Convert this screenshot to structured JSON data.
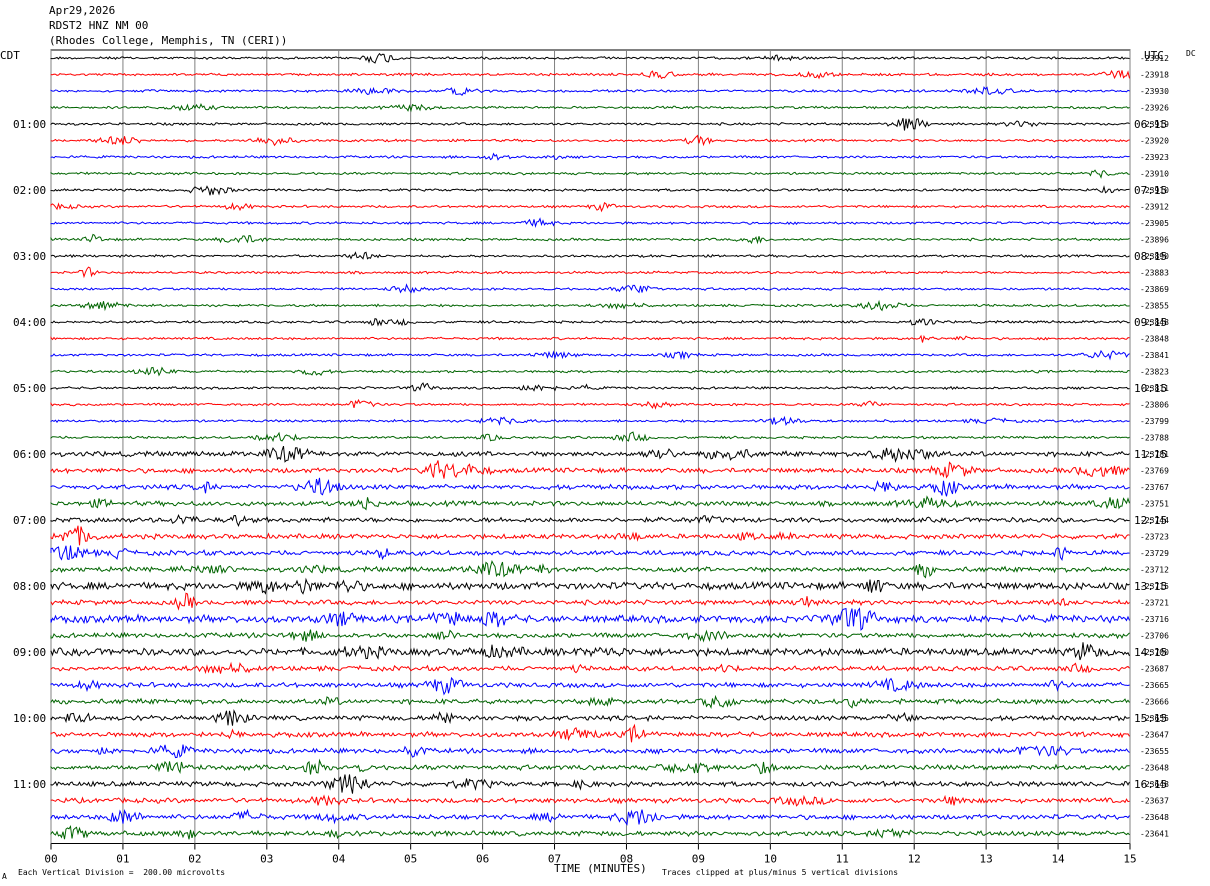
{
  "header": {
    "date": "Apr29,2026",
    "station": "RDST2 HNZ NM 00",
    "location": "(Rhodes College, Memphis, TN (CERI))"
  },
  "left_axis_title": "CDT",
  "right_axis_title": "UTC",
  "dc_label": "DC",
  "xaxis_title": "TIME (MINUTES)",
  "footer": {
    "division_note": "Each Vertical Division =  200.00 microvolts",
    "clip_note": "Traces clipped at plus/minus 5 vertical divisions",
    "corner_mark": "A"
  },
  "colors": {
    "black": "#000000",
    "red": "#ff0000",
    "blue": "#0000ff",
    "green": "#006400",
    "grid": "#808080"
  },
  "chart_data": {
    "type": "line",
    "title": "",
    "xlabel": "TIME (MINUTES)",
    "x_ticks": [
      "00",
      "01",
      "02",
      "03",
      "04",
      "05",
      "06",
      "07",
      "08",
      "09",
      "10",
      "11",
      "12",
      "13",
      "14",
      "15"
    ],
    "xlim": [
      0,
      15
    ],
    "grid": true,
    "trace_minutes": 15,
    "trace_colors": [
      "black",
      "red",
      "blue",
      "green"
    ],
    "left_hour_labels": [
      "01:00",
      "02:00",
      "03:00",
      "04:00",
      "05:00",
      "06:00",
      "07:00",
      "08:00",
      "09:00",
      "10:00",
      "11:00"
    ],
    "right_hour_labels": [
      "06:15",
      "07:15",
      "08:15",
      "09:15",
      "10:15",
      "11:15",
      "12:15",
      "13:15",
      "14:15",
      "15:15",
      "16:15"
    ],
    "trace_dc_offsets": [
      -23912,
      -23918,
      -23930,
      -23926,
      -23919,
      -23920,
      -23923,
      -23910,
      -23910,
      -23912,
      -23905,
      -23896,
      -23890,
      -23883,
      -23869,
      -23855,
      -23848,
      -23848,
      -23841,
      -23823,
      -23811,
      -23806,
      -23799,
      -23788,
      -23781,
      -23769,
      -23767,
      -23751,
      -23744,
      -23723,
      -23729,
      -23712,
      -23715,
      -23721,
      -23716,
      -23706,
      -23700,
      -23687,
      -23665,
      -23666,
      -23655,
      -23647,
      -23655,
      -23648,
      -23648,
      -23637,
      -23648,
      -23641
    ],
    "trace_noise_level": [
      1,
      1,
      1,
      1,
      1,
      1,
      1,
      1,
      1,
      1,
      1,
      1,
      1,
      1,
      1,
      1,
      1,
      1,
      1,
      1,
      1,
      1,
      1,
      1,
      2,
      2,
      2,
      2,
      2,
      2,
      2,
      2,
      3,
      2,
      3,
      2,
      3,
      2,
      2,
      2,
      2,
      2,
      2,
      2,
      2,
      2,
      2,
      2
    ]
  }
}
